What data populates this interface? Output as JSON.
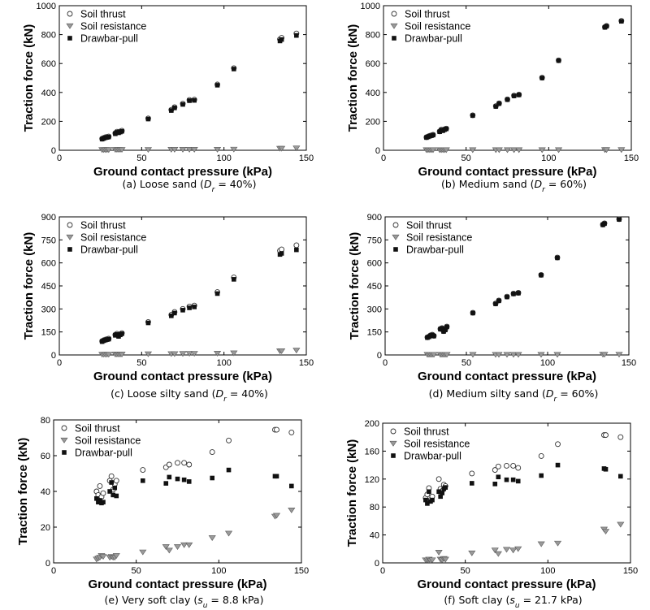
{
  "colors": {
    "axis": "#000000",
    "thrust_stroke": "#333333",
    "resistance_fill": "#9a9a9a",
    "resistance_stroke": "#5a5a5a",
    "drawbar_fill": "#111111"
  },
  "chart_data": [
    {
      "panel": "a",
      "type": "scatter",
      "caption": {
        "prefix": "(a) Loose sand (",
        "var": "D",
        "sub": "r",
        "suffix": " = 40%)"
      },
      "xlabel": "Ground contact pressure (kPa)",
      "ylabel": "Traction force (kN)",
      "xlim": [
        0,
        150
      ],
      "xticks": [
        0,
        50,
        100,
        150
      ],
      "ylim": [
        0,
        1000
      ],
      "yticks": [
        0,
        200,
        400,
        600,
        800,
        1000
      ],
      "legend": "top-left",
      "series": [
        {
          "name": "Soil thrust",
          "marker": "open-circle",
          "x": [
            26,
            27,
            28,
            29,
            30,
            34,
            35,
            36,
            37,
            38,
            54,
            68,
            70,
            75,
            79,
            82,
            96,
            106,
            134,
            135,
            144
          ],
          "y": [
            80,
            85,
            90,
            92,
            95,
            118,
            128,
            125,
            130,
            135,
            220,
            280,
            298,
            322,
            348,
            350,
            455,
            568,
            768,
            778,
            808
          ]
        },
        {
          "name": "Soil resistance",
          "marker": "triangle-down",
          "x": [
            26,
            27,
            28,
            29,
            30,
            34,
            35,
            36,
            37,
            38,
            54,
            68,
            70,
            75,
            79,
            82,
            96,
            106,
            134,
            135,
            144
          ],
          "y": [
            3,
            3,
            3,
            3,
            3,
            4,
            4,
            4,
            4,
            4,
            4,
            5,
            5,
            5,
            5,
            5,
            5,
            6,
            12,
            12,
            14
          ]
        },
        {
          "name": "Drawbar-pull",
          "marker": "filled-square",
          "x": [
            26,
            27,
            28,
            29,
            30,
            34,
            35,
            36,
            37,
            38,
            54,
            68,
            70,
            75,
            79,
            82,
            96,
            106,
            134,
            135,
            144
          ],
          "y": [
            77,
            82,
            87,
            89,
            92,
            114,
            124,
            121,
            126,
            131,
            216,
            275,
            293,
            317,
            343,
            345,
            450,
            562,
            756,
            766,
            794
          ]
        }
      ]
    },
    {
      "panel": "b",
      "type": "scatter",
      "caption": {
        "prefix": "(b) Medium sand (",
        "var": "D",
        "sub": "r",
        "suffix": " = 60%)"
      },
      "xlabel": "Ground contact pressure (kPa)",
      "ylabel": "Traction force (kN)",
      "xlim": [
        0,
        150
      ],
      "xticks": [
        0,
        50,
        100,
        150
      ],
      "ylim": [
        0,
        1000
      ],
      "yticks": [
        0,
        200,
        400,
        600,
        800,
        1000
      ],
      "legend": "top-left",
      "series": [
        {
          "name": "Soil thrust",
          "marker": "open-circle",
          "x": [
            26,
            27,
            28,
            29,
            30,
            34,
            35,
            36,
            37,
            38,
            54,
            68,
            70,
            75,
            79,
            82,
            96,
            106,
            134,
            135,
            144
          ],
          "y": [
            90,
            95,
            100,
            103,
            107,
            130,
            142,
            138,
            145,
            150,
            242,
            305,
            325,
            352,
            378,
            385,
            502,
            622,
            852,
            860,
            895
          ]
        },
        {
          "name": "Soil resistance",
          "marker": "triangle-down",
          "x": [
            26,
            27,
            28,
            29,
            30,
            34,
            35,
            36,
            37,
            38,
            54,
            68,
            70,
            75,
            79,
            82,
            96,
            106,
            134,
            135,
            144
          ],
          "y": [
            2,
            2,
            2,
            2,
            2,
            2,
            2,
            2,
            2,
            2,
            2,
            2,
            2,
            2,
            2,
            2,
            2,
            2,
            3,
            3,
            3
          ]
        },
        {
          "name": "Drawbar-pull",
          "marker": "filled-square",
          "x": [
            26,
            27,
            28,
            29,
            30,
            34,
            35,
            36,
            37,
            38,
            54,
            68,
            70,
            75,
            79,
            82,
            96,
            106,
            134,
            135,
            144
          ],
          "y": [
            88,
            93,
            98,
            101,
            105,
            128,
            140,
            136,
            143,
            148,
            240,
            303,
            323,
            350,
            376,
            383,
            500,
            620,
            850,
            858,
            892
          ]
        }
      ]
    },
    {
      "panel": "c",
      "type": "scatter",
      "caption": {
        "prefix": "(c) Loose silty sand (",
        "var": "D",
        "sub": "r",
        "suffix": " = 40%)"
      },
      "xlabel": "Ground contact pressure (kPa)",
      "ylabel": "Traction force (kN)",
      "xlim": [
        0,
        150
      ],
      "xticks": [
        0,
        50,
        100,
        150
      ],
      "ylim": [
        0,
        900
      ],
      "yticks": [
        0,
        150,
        300,
        450,
        600,
        750,
        900
      ],
      "legend": "top-left",
      "series": [
        {
          "name": "Soil thrust",
          "marker": "open-circle",
          "x": [
            26,
            27,
            28,
            29,
            30,
            34,
            35,
            36,
            37,
            38,
            54,
            68,
            70,
            75,
            79,
            82,
            96,
            106,
            134,
            135,
            144
          ],
          "y": [
            90,
            96,
            100,
            103,
            106,
            132,
            138,
            125,
            135,
            142,
            215,
            262,
            280,
            300,
            316,
            322,
            410,
            505,
            680,
            688,
            715
          ]
        },
        {
          "name": "Soil resistance",
          "marker": "triangle-down",
          "x": [
            26,
            27,
            28,
            29,
            30,
            34,
            35,
            36,
            37,
            38,
            54,
            68,
            70,
            75,
            79,
            82,
            96,
            106,
            134,
            135,
            144
          ],
          "y": [
            3,
            3,
            3,
            3,
            3,
            4,
            4,
            4,
            4,
            4,
            6,
            7,
            7,
            8,
            9,
            9,
            10,
            12,
            25,
            26,
            30
          ]
        },
        {
          "name": "Drawbar-pull",
          "marker": "filled-square",
          "x": [
            26,
            27,
            28,
            29,
            30,
            34,
            35,
            36,
            37,
            38,
            54,
            68,
            70,
            75,
            79,
            82,
            96,
            106,
            134,
            135,
            144
          ],
          "y": [
            87,
            93,
            97,
            100,
            103,
            128,
            134,
            121,
            131,
            138,
            209,
            255,
            273,
            292,
            307,
            313,
            400,
            493,
            655,
            662,
            685
          ]
        }
      ]
    },
    {
      "panel": "d",
      "type": "scatter",
      "caption": {
        "prefix": "(d) Medium silty sand (",
        "var": "D",
        "sub": "r",
        "suffix": " = 60%)"
      },
      "xlabel": "Ground contact pressure (kPa)",
      "ylabel": "Traction force (kN)",
      "xlim": [
        0,
        150
      ],
      "xticks": [
        0,
        50,
        100,
        150
      ],
      "ylim": [
        0,
        900
      ],
      "yticks": [
        0,
        150,
        300,
        450,
        600,
        750,
        900
      ],
      "legend": "top-left",
      "series": [
        {
          "name": "Soil thrust",
          "marker": "open-circle",
          "x": [
            26,
            27,
            28,
            29,
            30,
            34,
            35,
            36,
            37,
            38,
            54,
            68,
            70,
            75,
            79,
            82,
            96,
            106,
            134,
            135,
            144
          ],
          "y": [
            115,
            120,
            128,
            132,
            125,
            170,
            175,
            155,
            165,
            185,
            275,
            335,
            355,
            380,
            400,
            405,
            522,
            635,
            850,
            858,
            885
          ]
        },
        {
          "name": "Soil resistance",
          "marker": "triangle-down",
          "x": [
            26,
            27,
            28,
            29,
            30,
            34,
            35,
            36,
            37,
            38,
            54,
            68,
            70,
            75,
            79,
            82,
            96,
            106,
            134,
            135,
            144
          ],
          "y": [
            2,
            2,
            2,
            2,
            2,
            2,
            2,
            2,
            2,
            2,
            2,
            2,
            2,
            2,
            2,
            2,
            2,
            2,
            3,
            3,
            3
          ]
        },
        {
          "name": "Drawbar-pull",
          "marker": "filled-square",
          "x": [
            26,
            27,
            28,
            29,
            30,
            34,
            35,
            36,
            37,
            38,
            54,
            68,
            70,
            75,
            79,
            82,
            96,
            106,
            134,
            135,
            144
          ],
          "y": [
            113,
            118,
            126,
            130,
            123,
            168,
            173,
            153,
            163,
            183,
            273,
            333,
            353,
            378,
            398,
            403,
            520,
            633,
            848,
            856,
            883
          ]
        }
      ]
    },
    {
      "panel": "e",
      "type": "scatter",
      "caption": {
        "prefix": "(e) Very soft clay (",
        "var": "s",
        "sub": "u",
        "suffix": " = 8.8 kPa)"
      },
      "xlabel": "Ground contact pressure (kPa)",
      "ylabel": "Traction force (kN)",
      "xlim": [
        0,
        150
      ],
      "xticks": [
        0,
        50,
        100,
        150
      ],
      "ylim": [
        0,
        80
      ],
      "yticks": [
        0,
        20,
        40,
        60,
        80
      ],
      "legend": "top-left",
      "series": [
        {
          "name": "Soil thrust",
          "marker": "open-circle",
          "x": [
            26,
            27,
            28,
            29,
            30,
            34,
            35,
            36,
            37,
            38,
            54,
            68,
            70,
            75,
            79,
            82,
            96,
            106,
            134,
            135,
            144
          ],
          "y": [
            40,
            38,
            43,
            37,
            39,
            46,
            48.5,
            41,
            44,
            46,
            52,
            53.5,
            55,
            56,
            56,
            55,
            62,
            68.5,
            74.5,
            74.5,
            73
          ]
        },
        {
          "name": "Soil resistance",
          "marker": "triangle-down",
          "x": [
            26,
            27,
            28,
            29,
            30,
            34,
            35,
            36,
            37,
            38,
            54,
            68,
            70,
            75,
            79,
            82,
            96,
            106,
            134,
            135,
            144
          ],
          "y": [
            2,
            2.5,
            3,
            4,
            3.5,
            3,
            3.5,
            3,
            3,
            4,
            6,
            9,
            7,
            9,
            10,
            10,
            14,
            16.5,
            26,
            26.5,
            29.5
          ]
        },
        {
          "name": "Drawbar-pull",
          "marker": "filled-square",
          "x": [
            26,
            27,
            28,
            29,
            30,
            34,
            35,
            36,
            37,
            38,
            54,
            68,
            70,
            75,
            79,
            82,
            96,
            106,
            134,
            135,
            144
          ],
          "y": [
            36,
            34,
            35,
            33.5,
            34,
            40,
            45,
            38,
            42,
            37.5,
            46,
            44.5,
            48,
            47,
            46.5,
            45.5,
            47.5,
            52,
            48.5,
            48.5,
            43
          ]
        }
      ]
    },
    {
      "panel": "f",
      "type": "scatter",
      "caption": {
        "prefix": "(f) Soft clay (",
        "var": "s",
        "sub": "u",
        "suffix": " = 21.7 kPa)"
      },
      "xlabel": "Ground contact pressure (kPa)",
      "ylabel": "Traction force (kN)",
      "xlim": [
        0,
        150
      ],
      "xticks": [
        0,
        50,
        100,
        150
      ],
      "ylim": [
        0,
        200
      ],
      "yticks": [
        0,
        40,
        80,
        120,
        160,
        200
      ],
      "legend": "top-left",
      "series": [
        {
          "name": "Soil thrust",
          "marker": "open-circle",
          "x": [
            26,
            27,
            28,
            29,
            30,
            34,
            35,
            36,
            37,
            38,
            54,
            68,
            70,
            75,
            79,
            82,
            96,
            106,
            134,
            135,
            144
          ],
          "y": [
            93,
            98,
            107,
            90,
            95,
            120,
            106,
            103,
            112,
            110,
            128,
            133,
            138,
            139,
            139,
            136,
            153,
            170,
            183,
            183,
            180
          ]
        },
        {
          "name": "Soil resistance",
          "marker": "triangle-down",
          "x": [
            26,
            27,
            28,
            29,
            30,
            34,
            35,
            36,
            37,
            38,
            54,
            68,
            70,
            75,
            79,
            82,
            96,
            106,
            134,
            135,
            144
          ],
          "y": [
            4,
            4,
            5,
            3,
            4,
            15,
            5,
            4,
            6,
            5,
            14,
            18,
            13,
            19,
            18,
            20,
            27,
            28,
            48,
            45,
            55
          ]
        },
        {
          "name": "Drawbar-pull",
          "marker": "filled-square",
          "x": [
            26,
            27,
            28,
            29,
            30,
            34,
            35,
            36,
            37,
            38,
            54,
            68,
            70,
            75,
            79,
            82,
            96,
            106,
            134,
            135,
            144
          ],
          "y": [
            90,
            85,
            102,
            88,
            90,
            102,
            95,
            100,
            106,
            108,
            114,
            113,
            123,
            119,
            119,
            117,
            125,
            140,
            135,
            134,
            124
          ]
        }
      ]
    }
  ]
}
